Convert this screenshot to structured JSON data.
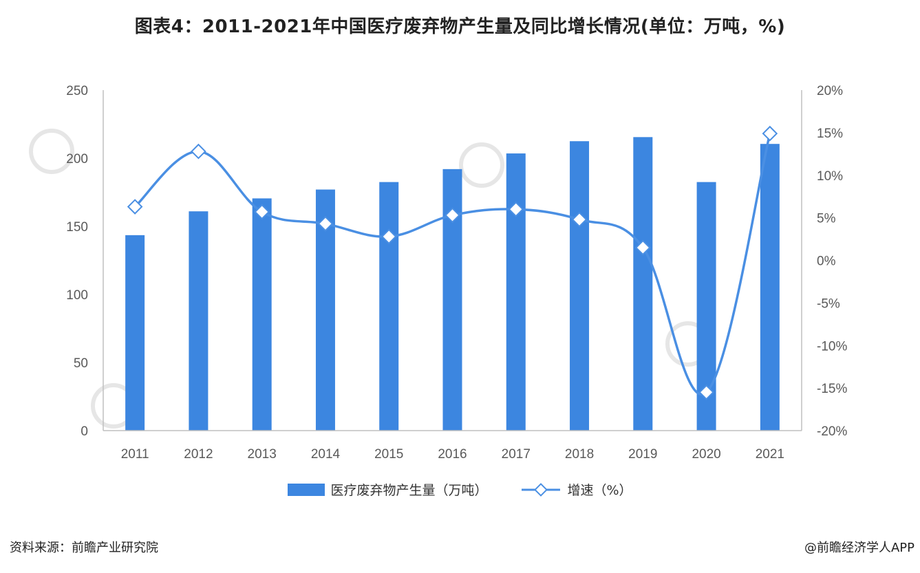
{
  "title": "图表4：2011-2021年中国医疗废弃物产生量及同比增长情况(单位：万吨，%)",
  "source": "资料来源：前瞻产业研究院",
  "credit": "@前瞻经济学人APP",
  "colors": {
    "bar": "#3c86e0",
    "line": "#4a8fe3",
    "axis": "#bfbfbf",
    "text": "#595959"
  },
  "chart_data": {
    "type": "bar",
    "categories": [
      "2011",
      "2012",
      "2013",
      "2014",
      "2015",
      "2016",
      "2017",
      "2018",
      "2019",
      "2020",
      "2021"
    ],
    "series": [
      {
        "name": "医疗废弃物产生量（万吨）",
        "type": "bar",
        "axis": "left",
        "values": [
          143.5,
          161.0,
          170.5,
          177.0,
          182.5,
          192.0,
          203.5,
          212.5,
          215.5,
          182.5,
          210.5
        ]
      },
      {
        "name": "增速（%）",
        "type": "line",
        "axis": "right",
        "values": [
          6.3,
          12.8,
          5.7,
          4.3,
          2.8,
          5.3,
          6.0,
          4.8,
          1.5,
          -15.5,
          14.9
        ]
      }
    ],
    "y_left": {
      "ylim": [
        0,
        250
      ],
      "ticks": [
        "0",
        "50",
        "100",
        "150",
        "200",
        "250"
      ]
    },
    "y_right": {
      "ylim": [
        -20,
        20
      ],
      "ticks": [
        "-20%",
        "-15%",
        "-10%",
        "-5%",
        "0%",
        "5%",
        "10%",
        "15%",
        "20%"
      ]
    },
    "legend": "bottom"
  }
}
